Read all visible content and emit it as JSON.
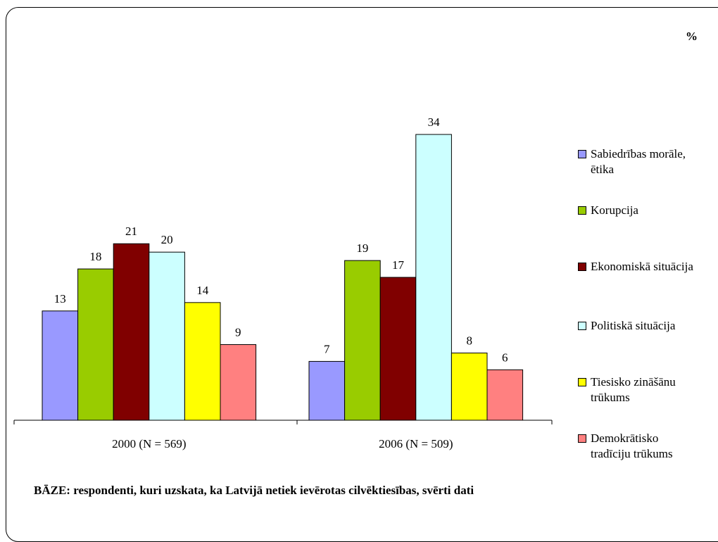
{
  "chart_data": {
    "type": "bar",
    "unit_label": "%",
    "categories": [
      "2000 (N = 569)",
      "2006 (N = 509)"
    ],
    "series": [
      {
        "name": "Sabiedrības morāle,\nētika",
        "color": "#9999ff",
        "values": [
          13,
          7
        ]
      },
      {
        "name": "Korupcija",
        "color": "#99cc00",
        "values": [
          18,
          19
        ]
      },
      {
        "name": "Ekonomiskā situācija",
        "color": "#800000",
        "values": [
          21,
          17
        ]
      },
      {
        "name": "Politiskā situācija",
        "color": "#ccffff",
        "values": [
          20,
          34
        ]
      },
      {
        "name": "Tiesisko zināšānu\ntrūkums",
        "color": "#ffff00",
        "values": [
          14,
          8
        ]
      },
      {
        "name": "Demokrātisko\ntradīciju trūkums",
        "color": "#ff8080",
        "values": [
          9,
          6
        ]
      }
    ],
    "ylim": [
      0,
      34
    ],
    "grid": false,
    "legend_position": "right",
    "note": "BĀZE: respondenti, kuri uzskata, ka Latvijā netiek ievērotas cilvēktiesības, svērti dati"
  }
}
